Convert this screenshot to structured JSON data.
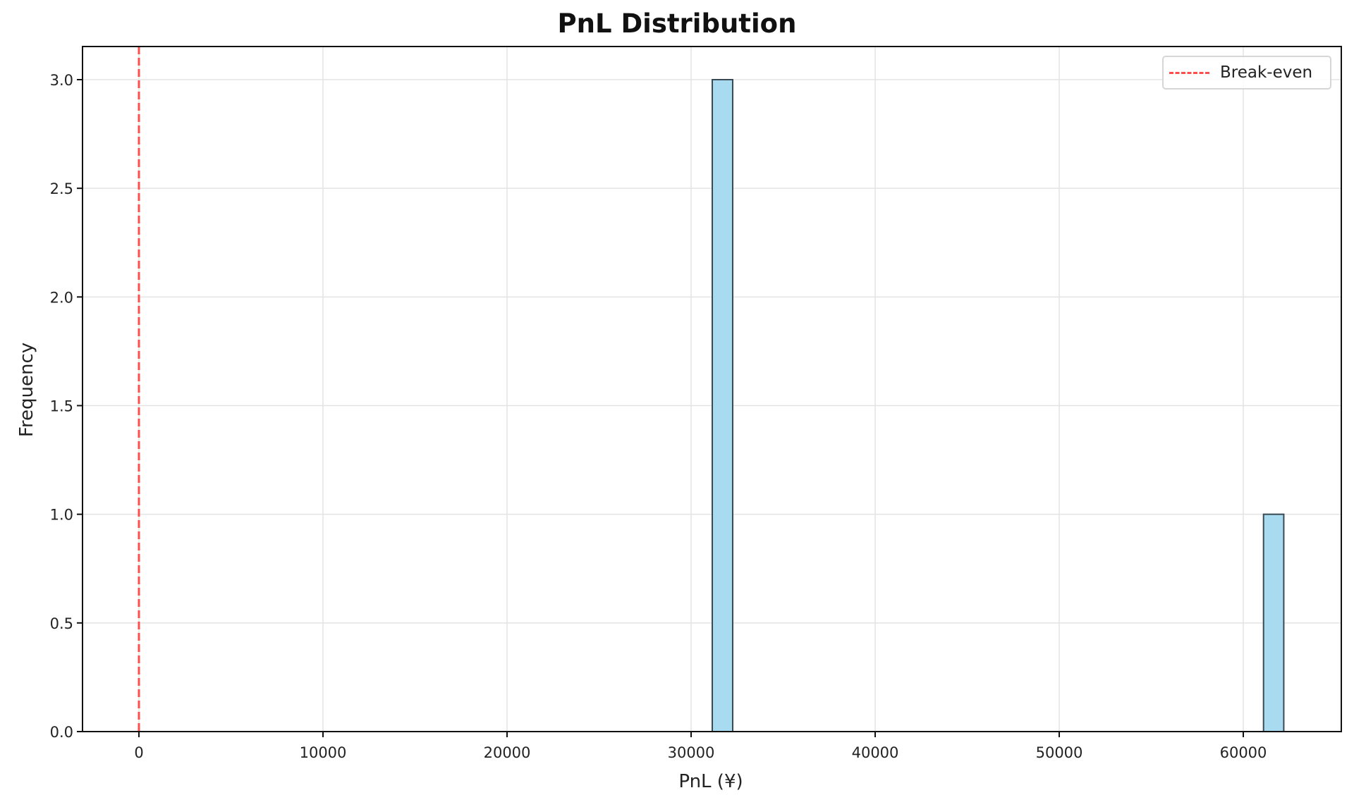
{
  "chart_data": {
    "type": "bar",
    "subtype": "histogram",
    "title": "PnL Distribution",
    "xlabel": "PnL (¥)",
    "ylabel": "Frequency",
    "xlim": [
      -3000,
      65400
    ],
    "ylim": [
      0,
      3.15
    ],
    "x_ticks": [
      0,
      10000,
      20000,
      30000,
      40000,
      50000,
      60000
    ],
    "x_tick_labels": [
      "0",
      "10000",
      "20000",
      "30000",
      "40000",
      "50000",
      "60000"
    ],
    "y_ticks": [
      0.0,
      0.5,
      1.0,
      1.5,
      2.0,
      2.5,
      3.0
    ],
    "y_tick_labels": [
      "0.0",
      "0.5",
      "1.0",
      "1.5",
      "2.0",
      "2.5",
      "3.0"
    ],
    "grid": true,
    "bins": [
      {
        "x_start": 31150,
        "x_end": 32260,
        "count": 3
      },
      {
        "x_start": 61100,
        "x_end": 62200,
        "count": 1
      }
    ],
    "categories": [
      "31150–32260",
      "61100–62200"
    ],
    "values": [
      3,
      1
    ],
    "bar_color": "#a8dbef",
    "bar_edge_color": "#3a4a55",
    "reference_lines": [
      {
        "type": "vertical",
        "x": 0,
        "style": "dashed",
        "color": "#ff4d4d",
        "label": "Break-even"
      }
    ],
    "legend": {
      "position": "upper right",
      "entries": [
        "Break-even"
      ]
    }
  },
  "legend": {
    "items": [
      {
        "label": "Break-even",
        "color": "#ff4d4d"
      }
    ]
  }
}
